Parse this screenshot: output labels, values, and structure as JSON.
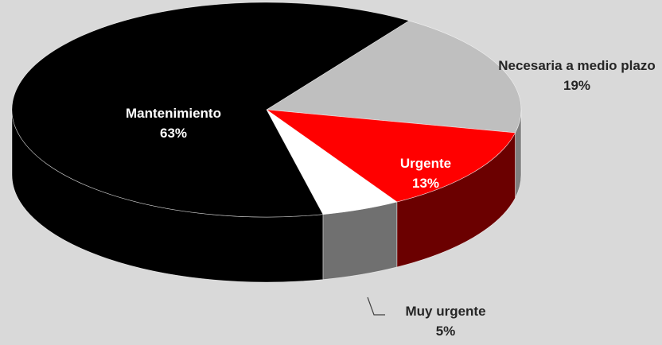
{
  "chart_data": {
    "type": "pie3d",
    "categories": [
      "Necesaria a medio plazo",
      "Urgente",
      "Muy urgente",
      "Mantenimiento"
    ],
    "values": [
      19,
      13,
      5,
      63
    ],
    "value_labels": [
      "19%",
      "13%",
      "5%",
      "63%"
    ],
    "colors": [
      "#bfbfbf",
      "#ff0000",
      "#ffffff",
      "#000000"
    ]
  }
}
